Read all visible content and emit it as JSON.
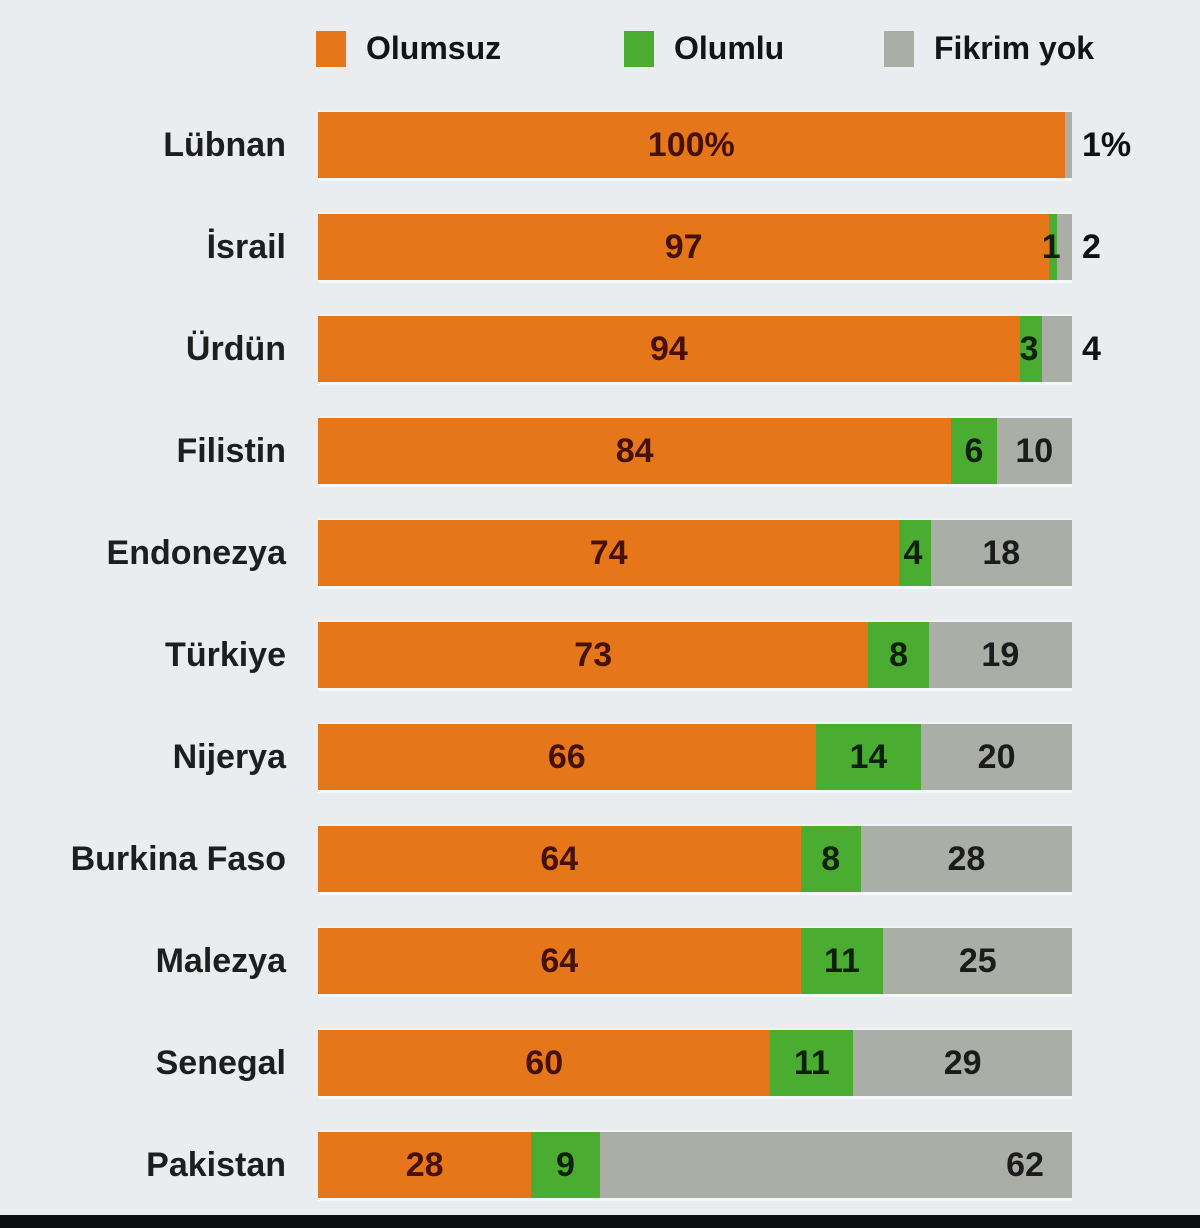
{
  "legend": [
    {
      "label": "Olumsuz",
      "color": "#e6761a"
    },
    {
      "label": "Olumlu",
      "color": "#4aad31"
    },
    {
      "label": "Fikrim yok",
      "color": "#abaea7"
    }
  ],
  "chart_data": {
    "type": "bar",
    "orientation": "horizontal",
    "stacked": true,
    "unit": "%",
    "series_names": [
      "Olumsuz",
      "Olumlu",
      "Fikrim yok"
    ],
    "colors": {
      "negative": "#e6761a",
      "positive": "#4aad31",
      "no_opinion": "#abaea7",
      "background": "#e9edf0"
    },
    "rows": [
      {
        "country": "Lübnan",
        "negative": 100,
        "positive": null,
        "no_opinion": 1,
        "labels": [
          "100%",
          null,
          "1%"
        ]
      },
      {
        "country": "İsrail",
        "negative": 97,
        "positive": 1,
        "no_opinion": 2,
        "labels": [
          "97",
          "1",
          "2"
        ]
      },
      {
        "country": "Ürdün",
        "negative": 94,
        "positive": 3,
        "no_opinion": 4,
        "labels": [
          "94",
          "3",
          "4"
        ]
      },
      {
        "country": "Filistin",
        "negative": 84,
        "positive": 6,
        "no_opinion": 10,
        "labels": [
          "84",
          "6",
          "10"
        ]
      },
      {
        "country": "Endonezya",
        "negative": 74,
        "positive": 4,
        "no_opinion": 18,
        "labels": [
          "74",
          "4",
          "18"
        ]
      },
      {
        "country": "Türkiye",
        "negative": 73,
        "positive": 8,
        "no_opinion": 19,
        "labels": [
          "73",
          "8",
          "19"
        ]
      },
      {
        "country": "Nijerya",
        "negative": 66,
        "positive": 14,
        "no_opinion": 20,
        "labels": [
          "66",
          "14",
          "20"
        ]
      },
      {
        "country": "Burkina Faso",
        "negative": 64,
        "positive": 8,
        "no_opinion": 28,
        "labels": [
          "64",
          "8",
          "28"
        ]
      },
      {
        "country": "Malezya",
        "negative": 64,
        "positive": 11,
        "no_opinion": 25,
        "labels": [
          "64",
          "11",
          "25"
        ]
      },
      {
        "country": "Senegal",
        "negative": 60,
        "positive": 11,
        "no_opinion": 29,
        "labels": [
          "60",
          "11",
          "29"
        ]
      },
      {
        "country": "Pakistan",
        "negative": 28,
        "positive": 9,
        "no_opinion": 62,
        "labels": [
          "28",
          "9",
          "62"
        ],
        "gray_label_align": "right"
      }
    ]
  }
}
